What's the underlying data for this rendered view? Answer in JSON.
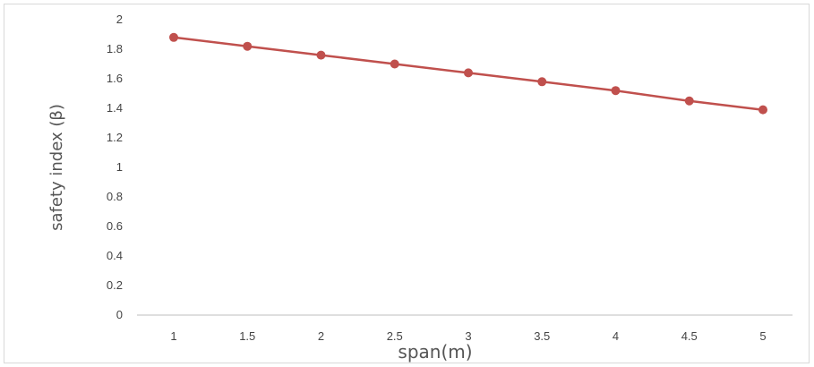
{
  "chart_data": {
    "type": "line",
    "title": "",
    "xlabel": "span(m)",
    "ylabel": "safety index (β)",
    "x": [
      1,
      1.5,
      2,
      2.5,
      3,
      3.5,
      4,
      4.5,
      5
    ],
    "x_tick_labels": [
      "1",
      "1.5",
      "2",
      "2.5",
      "3",
      "3.5",
      "4",
      "4.5",
      "5"
    ],
    "y_tick_labels": [
      "0",
      "0.2",
      "0.4",
      "0.6",
      "0.8",
      "1",
      "1.2",
      "1.4",
      "1.6",
      "1.8",
      "2"
    ],
    "ylim": [
      0,
      2
    ],
    "grid": false,
    "legend": "none",
    "series": [
      {
        "values": [
          1.88,
          1.82,
          1.76,
          1.7,
          1.64,
          1.58,
          1.52,
          1.45,
          1.39
        ],
        "color": "#c0504d"
      }
    ]
  }
}
